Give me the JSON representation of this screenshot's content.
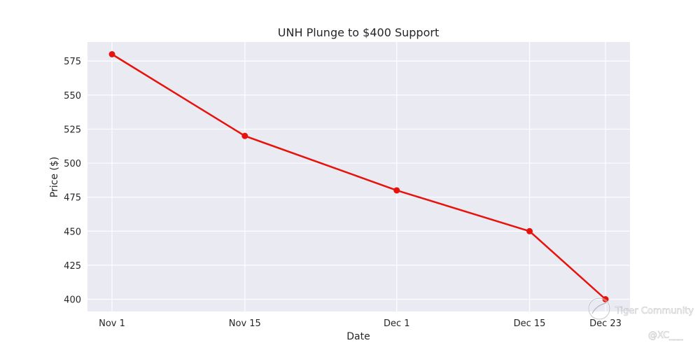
{
  "chart_data": {
    "type": "line",
    "title": "UNH Plunge to $400 Support",
    "xlabel": "Date",
    "ylabel": "Price ($)",
    "categories": [
      "Nov 1",
      "Nov 15",
      "Dec 1",
      "Dec 15",
      "Dec 23"
    ],
    "x_values": [
      "2024-11-01",
      "2024-11-15",
      "2024-12-01",
      "2024-12-15",
      "2024-12-23"
    ],
    "series": [
      {
        "values": [
          580,
          520,
          480,
          450,
          400
        ],
        "color": "#e8120c"
      }
    ],
    "yticks": [
      "400",
      "425",
      "450",
      "475",
      "500",
      "525",
      "550",
      "575"
    ],
    "ylim": [
      391,
      589
    ],
    "grid": true,
    "legend": "none"
  },
  "watermark": {
    "brand": "Tiger Community",
    "handle": "@XC___"
  },
  "colors": {
    "plot_background": "#eaeaf2",
    "grid": "#ffffff",
    "text": "#262626"
  }
}
